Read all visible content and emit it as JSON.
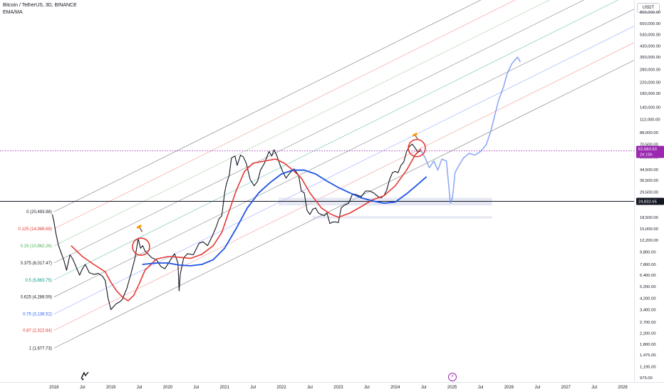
{
  "header": {
    "symbol": "Bitcoin / TetherUS, 3D, BINANCE",
    "indicator": "EMA/MA",
    "currency": "USDT"
  },
  "colors": {
    "price": "#131722",
    "ema": "#e53935",
    "ma": "#1e53e5",
    "projection": "#6b8ef0",
    "current_price_badge": "#9c27b0",
    "support_zone": "#c7cfe4",
    "channel_line": "#5d606b",
    "circle_highlight": "#e53935",
    "hammer": "#ff9800"
  },
  "icons": {
    "logo": "tradingview-logo-icon",
    "event": "lightning-event-icon",
    "hammer": "hammer-icon"
  },
  "chart_data": {
    "type": "line",
    "yscale": "log",
    "ylim": [
      900,
      1000000
    ],
    "y_ticks": [
      "800,000.00",
      "650,000.00",
      "530,000.00",
      "430,000.00",
      "350,000.00",
      "280,000.00",
      "220,000.00",
      "180,000.00",
      "140,000.00",
      "112,000.00",
      "88,000.00",
      "70,500.00",
      "56,000.00",
      "44,500.00",
      "36,500.00",
      "29,500.00",
      "24,000.00",
      "18,500.00",
      "15,000.00",
      "12,200.00",
      "9,800.00",
      "7,800.00",
      "6,400.00",
      "5,200.00",
      "4,200.00",
      "3,400.00",
      "2,700.00",
      "2,200.00",
      "1,800.00",
      "1,475.00",
      "1,195.00",
      "975.00"
    ],
    "y_tick_values": [
      800000,
      650000,
      530000,
      430000,
      350000,
      280000,
      220000,
      180000,
      140000,
      112000,
      88000,
      70500,
      56000,
      44500,
      36500,
      29500,
      24000,
      18500,
      15000,
      12200,
      9800,
      7800,
      6400,
      5200,
      4200,
      3400,
      2700,
      2200,
      1800,
      1475,
      1195,
      975
    ],
    "x_ticks": [
      "2018",
      "Jul",
      "2019",
      "Jul",
      "2020",
      "Jul",
      "2021",
      "Jul",
      "2022",
      "Jul",
      "2023",
      "Jul",
      "2024",
      "Jul",
      "2025",
      "Jul",
      "2026",
      "Jul",
      "2027",
      "Jul",
      "2028"
    ],
    "x_tick_values": [
      2018.0,
      2018.5,
      2019.0,
      2019.5,
      2020.0,
      2020.5,
      2021.0,
      2021.5,
      2022.0,
      2022.5,
      2023.0,
      2023.5,
      2024.0,
      2024.5,
      2025.0,
      2025.5,
      2026.0,
      2026.5,
      2027.0,
      2027.5,
      2028.0
    ],
    "xlim": [
      2017.05,
      2028.2
    ],
    "current_price": {
      "value": 62683.63,
      "label": "62,683.63",
      "countdown": "2d 15h"
    },
    "horizontal_level": {
      "value": 24832.65,
      "label": "24,832.65"
    },
    "fib_levels": [
      {
        "ratio": "0",
        "label": "0 (20,493.98)",
        "value": 20493.98,
        "color": "#131722"
      },
      {
        "ratio": "0.125",
        "label": "0.125 (14,988.68)",
        "value": 14988.68,
        "color": "#e53935"
      },
      {
        "ratio": "0.25",
        "label": "0.25 (10,962.26)",
        "value": 10962.26,
        "color": "#4caf50"
      },
      {
        "ratio": "0.375",
        "label": "0.375 (8,017.47)",
        "value": 8017.47,
        "color": "#131722"
      },
      {
        "ratio": "0.5",
        "label": "0.5 (5,863.75)",
        "value": 5863.75,
        "color": "#009688"
      },
      {
        "ratio": "0.625",
        "label": "0.625 (4,288.59)",
        "value": 4288.59,
        "color": "#131722"
      },
      {
        "ratio": "0.75",
        "label": "0.75 (3,136.52)",
        "value": 3136.52,
        "color": "#2962ff"
      },
      {
        "ratio": "0.87",
        "label": "0.87 (2,322.84)",
        "value": 2322.84,
        "color": "#e53935"
      },
      {
        "ratio": "1",
        "label": "1 (1,677.73)",
        "value": 1677.73,
        "color": "#131722"
      }
    ],
    "channel": {
      "anchor_x": 2018.0,
      "end_x": 2028.2,
      "slope_log10_per_year": 0.225,
      "line_colors": [
        "#131722",
        "#e53935",
        "#4caf50",
        "#131722",
        "#009688",
        "#131722",
        "#2962ff",
        "#e53935",
        "#131722"
      ]
    },
    "series": [
      {
        "name": "price",
        "x": [
          2017.97,
          2018.0,
          2018.03,
          2018.08,
          2018.12,
          2018.17,
          2018.22,
          2018.28,
          2018.33,
          2018.38,
          2018.45,
          2018.5,
          2018.55,
          2018.62,
          2018.7,
          2018.78,
          2018.85,
          2018.9,
          2018.95,
          2019.0,
          2019.05,
          2019.1,
          2019.15,
          2019.2,
          2019.28,
          2019.35,
          2019.42,
          2019.48,
          2019.52,
          2019.56,
          2019.6,
          2019.65,
          2019.72,
          2019.8,
          2019.88,
          2019.95,
          2020.05,
          2020.12,
          2020.18,
          2020.2,
          2020.22,
          2020.28,
          2020.35,
          2020.45,
          2020.55,
          2020.62,
          2020.7,
          2020.78,
          2020.85,
          2020.9,
          2020.95,
          2021.0,
          2021.03,
          2021.08,
          2021.12,
          2021.18,
          2021.22,
          2021.28,
          2021.33,
          2021.38,
          2021.45,
          2021.52,
          2021.58,
          2021.63,
          2021.7,
          2021.78,
          2021.83,
          2021.87,
          2021.92,
          2021.97,
          2022.02,
          2022.08,
          2022.15,
          2022.22,
          2022.3,
          2022.35,
          2022.4,
          2022.45,
          2022.5,
          2022.55,
          2022.6,
          2022.65,
          2022.7,
          2022.75,
          2022.8,
          2022.85,
          2022.9,
          2022.95,
          2023.0,
          2023.05,
          2023.1,
          2023.18,
          2023.25,
          2023.32,
          2023.4,
          2023.48,
          2023.55,
          2023.62,
          2023.7,
          2023.75,
          2023.8,
          2023.85,
          2023.9,
          2023.95,
          2024.0,
          2024.05,
          2024.1,
          2024.15,
          2024.2,
          2024.25,
          2024.3,
          2024.35,
          2024.4,
          2024.45
        ],
        "y": [
          19500,
          17000,
          14000,
          11000,
          9800,
          8500,
          7000,
          9300,
          8600,
          7600,
          6400,
          7200,
          7800,
          6700,
          6500,
          6600,
          6300,
          5800,
          4200,
          3400,
          3600,
          3800,
          3900,
          4100,
          5000,
          6500,
          8600,
          12500,
          10500,
          11000,
          10000,
          9500,
          8800,
          8500,
          7500,
          7200,
          8500,
          9500,
          8000,
          4800,
          6500,
          8800,
          9500,
          9300,
          11500,
          11800,
          11000,
          13000,
          15500,
          18000,
          19000,
          29000,
          34000,
          40000,
          55000,
          57000,
          48000,
          58000,
          56000,
          50000,
          37000,
          33000,
          36000,
          44000,
          50000,
          62000,
          57000,
          64000,
          57000,
          49000,
          43000,
          38000,
          42000,
          45000,
          40000,
          30000,
          29000,
          21000,
          19500,
          21500,
          22000,
          20000,
          19500,
          19000,
          20000,
          16500,
          17000,
          17000,
          16800,
          22000,
          23000,
          24000,
          28500,
          28000,
          27000,
          30000,
          30000,
          29000,
          27000,
          26500,
          27500,
          30500,
          37000,
          42000,
          43000,
          42000,
          48000,
          51000,
          62000,
          68000,
          71000,
          66000,
          61000,
          63000
        ]
      },
      {
        "name": "projection",
        "x": [
          2024.45,
          2024.52,
          2024.6,
          2024.68,
          2024.75,
          2024.82,
          2024.9,
          2024.97,
          2025.0,
          2025.02,
          2025.05,
          2025.12,
          2025.2,
          2025.3,
          2025.4,
          2025.5,
          2025.6,
          2025.68,
          2025.75,
          2025.82,
          2025.9,
          2025.97,
          2026.05,
          2026.1,
          2026.15,
          2026.2
        ],
        "y": [
          63000,
          56000,
          46000,
          52000,
          44000,
          54000,
          52000,
          24000,
          26000,
          30000,
          42000,
          48000,
          55000,
          60000,
          58000,
          62000,
          70000,
          90000,
          120000,
          160000,
          200000,
          260000,
          310000,
          330000,
          350000,
          320000
        ]
      },
      {
        "name": "EMA",
        "x": [
          2018.3,
          2018.5,
          2018.7,
          2018.9,
          2019.0,
          2019.1,
          2019.2,
          2019.3,
          2019.4,
          2019.5,
          2019.6,
          2019.8,
          2020.0,
          2020.2,
          2020.4,
          2020.6,
          2020.8,
          2020.95,
          2021.05,
          2021.2,
          2021.35,
          2021.5,
          2021.7,
          2021.9,
          2022.05,
          2022.2,
          2022.35,
          2022.5,
          2022.7,
          2022.85,
          2023.0,
          2023.2,
          2023.4,
          2023.6,
          2023.8,
          2024.0,
          2024.2,
          2024.35,
          2024.45
        ],
        "y": [
          11000,
          9000,
          7800,
          6800,
          5600,
          4800,
          4300,
          4000,
          4400,
          5500,
          7000,
          8600,
          9000,
          8900,
          8700,
          9400,
          11000,
          14000,
          19000,
          30000,
          43000,
          50000,
          52000,
          54000,
          50000,
          44000,
          38000,
          29000,
          22000,
          19800,
          18500,
          20000,
          22500,
          25500,
          27500,
          33000,
          44000,
          58000,
          65000
        ]
      },
      {
        "name": "MA",
        "x": [
          2019.55,
          2019.8,
          2020.0,
          2020.2,
          2020.4,
          2020.6,
          2020.8,
          2021.0,
          2021.2,
          2021.4,
          2021.6,
          2021.8,
          2022.0,
          2022.2,
          2022.4,
          2022.6,
          2022.8,
          2023.0,
          2023.2,
          2023.4,
          2023.6,
          2023.8,
          2024.0,
          2024.2,
          2024.4,
          2024.55
        ],
        "y": [
          7800,
          8000,
          8000,
          7700,
          7600,
          7800,
          8500,
          10500,
          15000,
          22000,
          29000,
          35000,
          41000,
          44000,
          44000,
          41000,
          36000,
          32000,
          29000,
          26500,
          25000,
          24000,
          24500,
          28500,
          34000,
          39000
        ]
      }
    ],
    "annotations": [
      {
        "type": "circle",
        "x": 2019.53,
        "y": 10800
      },
      {
        "type": "circle",
        "x": 2024.38,
        "y": 66000
      },
      {
        "type": "hammer",
        "x": 2019.5,
        "y": 15500
      },
      {
        "type": "hammer",
        "x": 2024.35,
        "y": 84000
      },
      {
        "type": "support_zone",
        "x0": 2021.95,
        "x1": 2025.7,
        "y0": 23000,
        "y1": 26500
      },
      {
        "type": "support_zone",
        "x0": 2022.55,
        "x1": 2025.7,
        "y0": 18100,
        "y1": 18900
      }
    ]
  }
}
